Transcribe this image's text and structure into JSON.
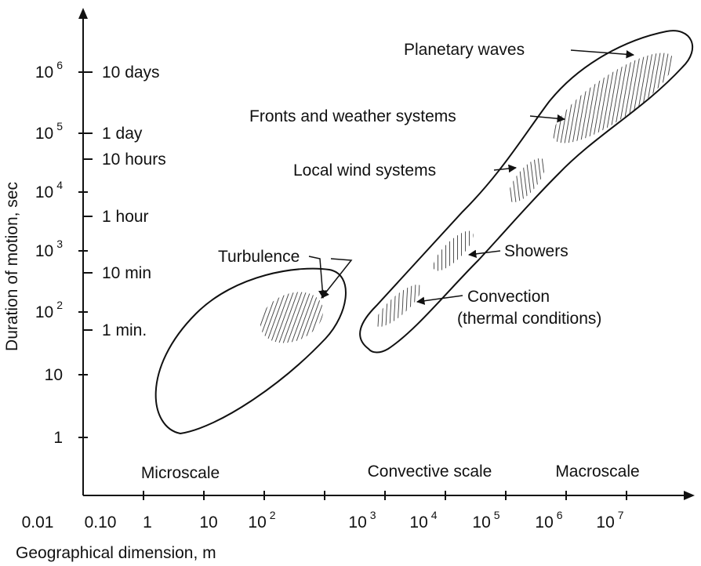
{
  "axes": {
    "y_title": "Duration of motion, sec",
    "x_title": "Geographical dimension, m",
    "y_ticks": [
      {
        "base": "10",
        "exponent": "6"
      },
      {
        "base": "10",
        "exponent": "5"
      },
      {
        "base": "10",
        "exponent": "4"
      },
      {
        "base": "10",
        "exponent": "3"
      },
      {
        "base": "10",
        "exponent": "2"
      },
      {
        "base": "10"
      },
      {
        "base": "1"
      }
    ],
    "time_labels": [
      "10 days",
      "1 day",
      "10 hours",
      "1 hour",
      "10 min",
      "1 min."
    ],
    "x_ticks": [
      {
        "base": "0.01"
      },
      {
        "base": "0.10"
      },
      {
        "base": "1"
      },
      {
        "base": "10"
      },
      {
        "base": "10",
        "exponent": "2"
      },
      {
        "base": "10",
        "exponent": "3"
      },
      {
        "base": "10",
        "exponent": "4"
      },
      {
        "base": "10",
        "exponent": "5"
      },
      {
        "base": "10",
        "exponent": "6"
      },
      {
        "base": "10",
        "exponent": "7"
      }
    ]
  },
  "scales": [
    "Microscale",
    "Convective scale",
    "Macroscale"
  ],
  "annotations": {
    "planetary": "Planetary waves",
    "fronts": "Fronts and weather systems",
    "local_wind": "Local wind systems",
    "showers": "Showers",
    "turbulence": "Turbulence",
    "convection": "Convection",
    "convection_note": "(thermal conditions)"
  }
}
